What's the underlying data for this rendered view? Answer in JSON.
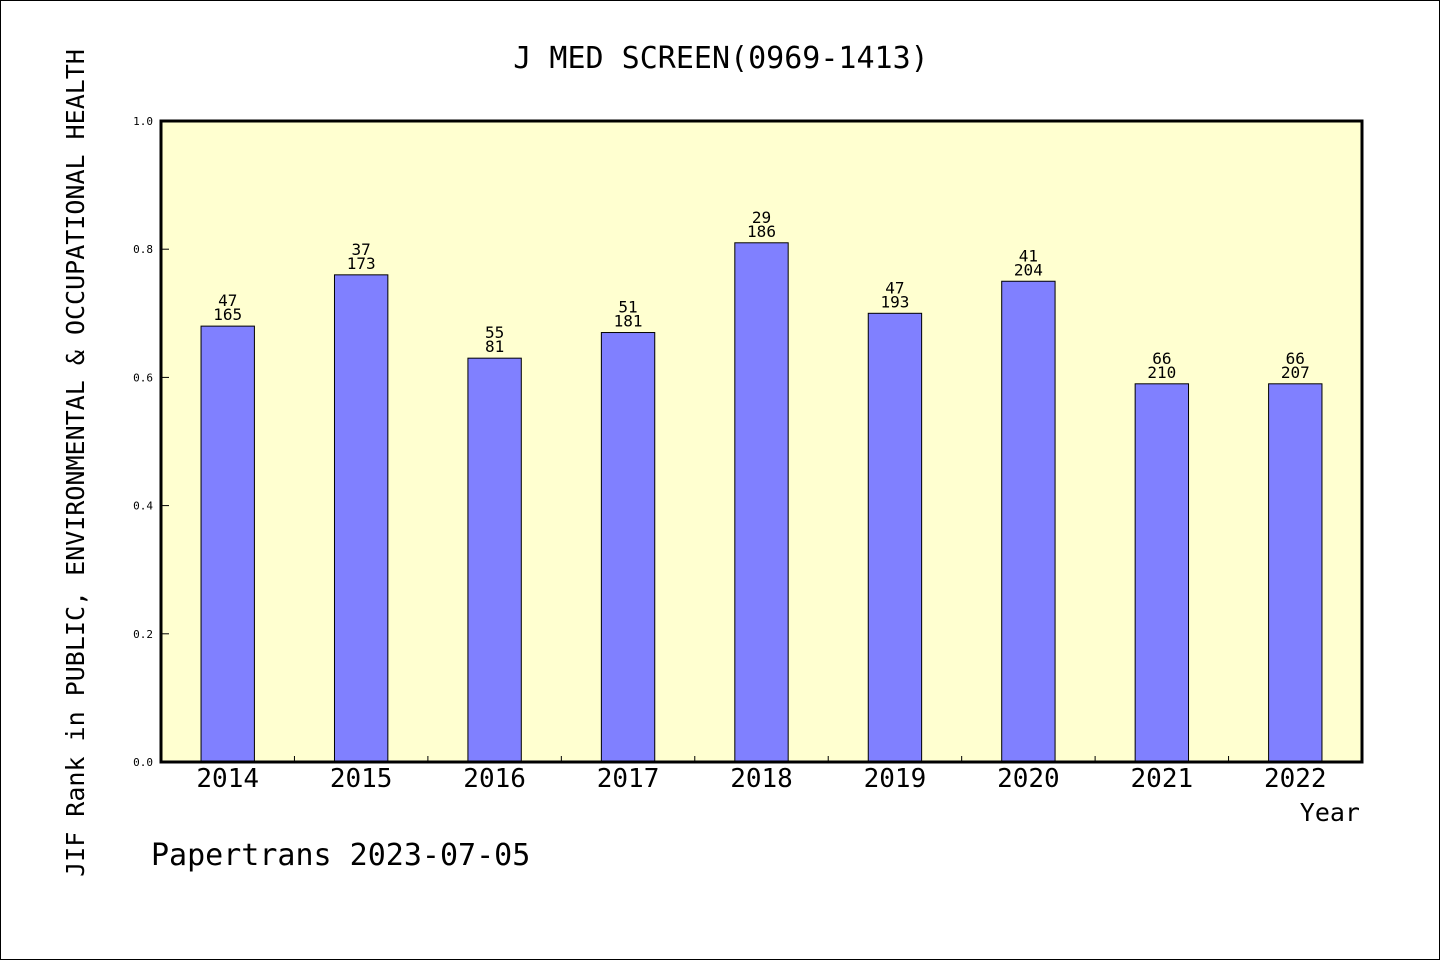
{
  "chart_data": {
    "type": "bar",
    "title": "J MED SCREEN(0969-1413)",
    "xlabel": "Year",
    "ylabel": "JIF Rank in PUBLIC, ENVIRONMENTAL & OCCUPATIONAL HEALTH",
    "categories": [
      "2014",
      "2015",
      "2016",
      "2017",
      "2018",
      "2019",
      "2020",
      "2021",
      "2022"
    ],
    "values": [
      0.68,
      0.76,
      0.63,
      0.67,
      0.81,
      0.7,
      0.75,
      0.59,
      0.59
    ],
    "rank": [
      "47",
      "37",
      "55",
      "51",
      "29",
      "47",
      "41",
      "66",
      "66"
    ],
    "total": [
      "165",
      "173",
      "81",
      "181",
      "186",
      "193",
      "204",
      "210",
      "207"
    ],
    "ylim": [
      0,
      1.0
    ],
    "yticks": [
      "0.0",
      "0.2",
      "0.4",
      "0.6",
      "0.8",
      "1.0"
    ],
    "grid": false,
    "colors": {
      "plot_background": "#ffffd0",
      "bar_fill": "#8080ff",
      "bar_stroke": "#000000"
    }
  },
  "footer": "Papertrans 2023-07-05"
}
